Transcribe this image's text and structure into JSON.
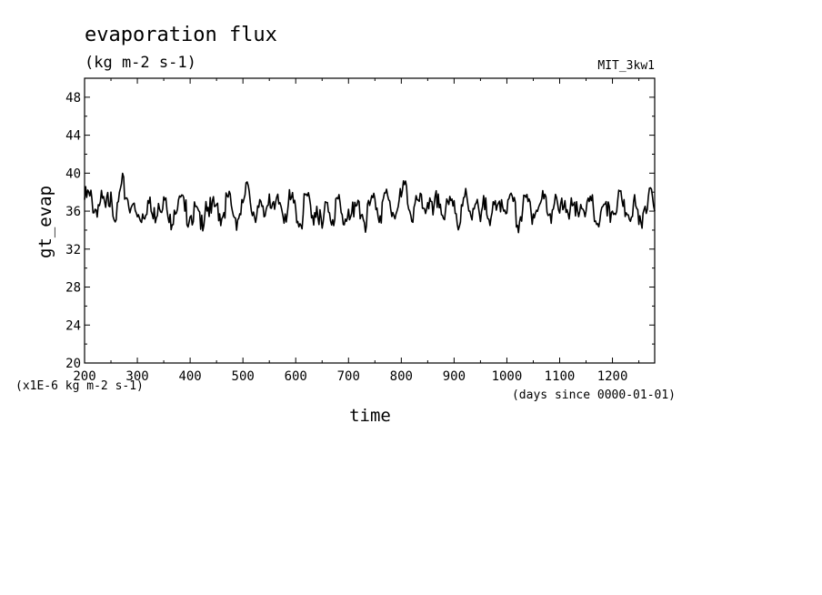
{
  "colors": {
    "background": "#ffffff",
    "line": "#000000"
  },
  "chart_data": {
    "type": "line",
    "title": "evaporation flux",
    "subtitle": "(kg m-2 s-1)",
    "dataset_label": "MIT_3kw1",
    "xlabel": "time",
    "x_unit_note": "(days since 0000-01-01)",
    "ylabel": "gt_evap",
    "y_unit_note": "(x1E-6 kg m-2 s-1)",
    "xlim": [
      200,
      1280
    ],
    "ylim": [
      20,
      50
    ],
    "x_ticks": [
      200,
      300,
      400,
      500,
      600,
      700,
      800,
      900,
      1000,
      1100,
      1200
    ],
    "y_ticks": [
      20,
      24,
      28,
      32,
      36,
      40,
      44,
      48
    ],
    "grid": false,
    "series": [
      {
        "x": [
          200,
          210,
          220,
          230,
          240,
          250,
          260,
          270,
          280,
          290,
          300,
          310,
          320,
          330,
          340,
          350,
          360,
          370,
          380,
          390,
          400,
          410,
          420,
          430,
          440,
          450,
          460,
          470,
          480,
          490,
          500,
          510,
          520,
          530,
          540,
          550,
          560,
          570,
          580,
          590,
          600,
          610,
          620,
          630,
          640,
          650,
          660,
          670,
          680,
          690,
          700,
          710,
          720,
          730,
          740,
          750,
          760,
          770,
          780,
          790,
          800,
          810,
          820,
          830,
          840,
          850,
          860,
          870,
          880,
          890,
          900,
          910,
          920,
          930,
          940,
          950,
          960,
          970,
          980,
          990,
          1000,
          1010,
          1020,
          1030,
          1040,
          1050,
          1060,
          1070,
          1080,
          1090,
          1100,
          1110,
          1120,
          1130,
          1140,
          1150,
          1160,
          1170,
          1180,
          1190,
          1200,
          1210,
          1220,
          1230,
          1240,
          1250,
          1260,
          1270,
          1280
        ],
        "values": [
          37.2,
          37.6,
          36.2,
          37.0,
          36.4,
          38.0,
          35.1,
          38.9,
          37.4,
          36.6,
          35.4,
          35.7,
          37.1,
          35.2,
          36.8,
          37.5,
          34.8,
          36.1,
          37.6,
          36.0,
          35.4,
          36.5,
          34.1,
          37.0,
          35.8,
          36.7,
          35.2,
          37.6,
          36.0,
          35.1,
          36.9,
          38.7,
          35.9,
          36.4,
          35.4,
          37.8,
          36.2,
          36.9,
          35.7,
          37.2,
          36.3,
          34.5,
          37.8,
          35.3,
          36.5,
          34.2,
          36.9,
          35.1,
          37.3,
          34.6,
          36.2,
          35.4,
          37.0,
          34.8,
          36.6,
          37.3,
          35.5,
          37.9,
          36.2,
          35.7,
          37.5,
          38.6,
          34.9,
          37.2,
          36.3,
          36.9,
          35.6,
          37.8,
          35.2,
          36.7,
          37.1,
          34.4,
          37.5,
          36.0,
          36.7,
          34.9,
          37.4,
          35.3,
          36.1,
          37.2,
          35.8,
          37.6,
          34.5,
          36.3,
          37.0,
          35.7,
          36.4,
          37.3,
          35.6,
          36.8,
          35.8,
          37.1,
          36.2,
          35.5,
          36.7,
          36.0,
          37.1,
          34.6,
          36.4,
          35.5,
          36.0,
          37.2,
          36.5,
          35.6,
          37.0,
          34.6,
          36.2,
          38.4,
          36.0
        ]
      }
    ]
  }
}
